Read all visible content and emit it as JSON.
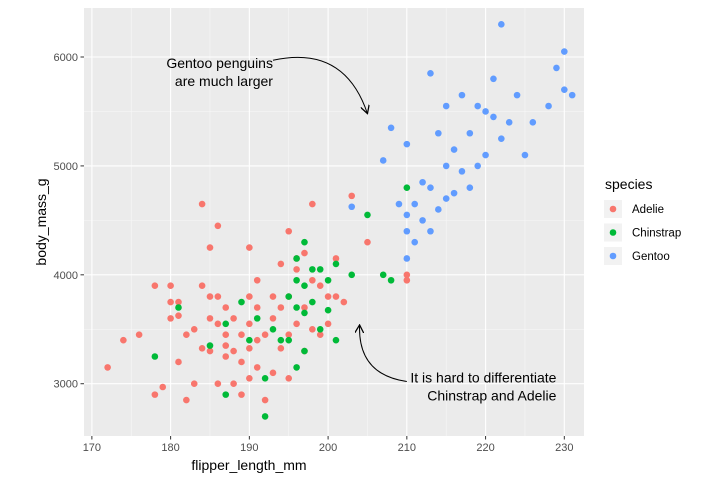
{
  "chart_data": {
    "type": "scatter",
    "xlabel": "flipper_length_mm",
    "ylabel": "body_mass_g",
    "xlim": [
      169,
      232.5
    ],
    "ylim": [
      2520,
      6450
    ],
    "x_ticks": [
      170,
      180,
      190,
      200,
      210,
      220,
      230
    ],
    "y_ticks": [
      3000,
      4000,
      5000,
      6000
    ],
    "grid": true,
    "legend": {
      "title": "species",
      "position": "right"
    },
    "annotations": [
      {
        "lines": [
          "Gentoo penguins",
          "are much larger"
        ],
        "x": 193,
        "y": 5900,
        "anchor": "end",
        "arrow": {
          "from": [
            193,
            5970
          ],
          "to": [
            205,
            5480
          ],
          "curvature": "clockwise"
        }
      },
      {
        "lines": [
          "It is hard to differentiate",
          "Chinstrap and Adelie"
        ],
        "x": 229,
        "y": 3010,
        "anchor": "end",
        "arrow": {
          "from": [
            210,
            3020
          ],
          "to": [
            204,
            3540
          ],
          "curvature": "clockwise"
        }
      }
    ],
    "series": [
      {
        "name": "Adelie",
        "color": "#F8766D",
        "points": [
          [
            172,
            3150
          ],
          [
            174,
            3400
          ],
          [
            176,
            3450
          ],
          [
            178,
            2900
          ],
          [
            178,
            3900
          ],
          [
            179,
            2970
          ],
          [
            180,
            3600
          ],
          [
            180,
            3750
          ],
          [
            180,
            3900
          ],
          [
            181,
            3200
          ],
          [
            181,
            3625
          ],
          [
            181,
            3750
          ],
          [
            182,
            2850
          ],
          [
            182,
            3450
          ],
          [
            183,
            3000
          ],
          [
            183,
            3500
          ],
          [
            184,
            3325
          ],
          [
            184,
            3900
          ],
          [
            184,
            4650
          ],
          [
            185,
            3300
          ],
          [
            185,
            3600
          ],
          [
            185,
            3800
          ],
          [
            185,
            4250
          ],
          [
            186,
            3000
          ],
          [
            186,
            3550
          ],
          [
            186,
            3800
          ],
          [
            186,
            4450
          ],
          [
            187,
            3250
          ],
          [
            187,
            3350
          ],
          [
            187,
            3450
          ],
          [
            187,
            3700
          ],
          [
            188,
            3000
          ],
          [
            188,
            3300
          ],
          [
            188,
            3600
          ],
          [
            189,
            2900
          ],
          [
            189,
            3200
          ],
          [
            189,
            3450
          ],
          [
            190,
            3050
          ],
          [
            190,
            3325
          ],
          [
            190,
            3550
          ],
          [
            190,
            3800
          ],
          [
            190,
            4250
          ],
          [
            191,
            3150
          ],
          [
            191,
            3400
          ],
          [
            191,
            3700
          ],
          [
            191,
            3950
          ],
          [
            192,
            2850
          ],
          [
            192,
            3450
          ],
          [
            193,
            3100
          ],
          [
            193,
            3600
          ],
          [
            193,
            3800
          ],
          [
            194,
            3325
          ],
          [
            194,
            3700
          ],
          [
            194,
            4100
          ],
          [
            195,
            3050
          ],
          [
            195,
            3450
          ],
          [
            195,
            3800
          ],
          [
            195,
            4400
          ],
          [
            196,
            3550
          ],
          [
            196,
            4050
          ],
          [
            196,
            4150
          ],
          [
            197,
            3300
          ],
          [
            197,
            3700
          ],
          [
            197,
            4200
          ],
          [
            198,
            3500
          ],
          [
            198,
            3950
          ],
          [
            198,
            4650
          ],
          [
            199,
            3450
          ],
          [
            199,
            3900
          ],
          [
            200,
            3550
          ],
          [
            200,
            3800
          ],
          [
            201,
            3800
          ],
          [
            201,
            4150
          ],
          [
            202,
            3750
          ],
          [
            203,
            4725
          ],
          [
            205,
            4300
          ],
          [
            210,
            3950
          ],
          [
            210,
            4000
          ]
        ]
      },
      {
        "name": "Chinstrap",
        "color": "#00BA38",
        "points": [
          [
            178,
            3250
          ],
          [
            181,
            3700
          ],
          [
            185,
            3350
          ],
          [
            187,
            3550
          ],
          [
            187,
            2900
          ],
          [
            189,
            3750
          ],
          [
            190,
            3400
          ],
          [
            191,
            3600
          ],
          [
            192,
            3050
          ],
          [
            192,
            2700
          ],
          [
            193,
            3500
          ],
          [
            194,
            3400
          ],
          [
            195,
            3400
          ],
          [
            195,
            3800
          ],
          [
            196,
            3150
          ],
          [
            196,
            3700
          ],
          [
            196,
            3950
          ],
          [
            196,
            4150
          ],
          [
            197,
            3300
          ],
          [
            197,
            3650
          ],
          [
            197,
            3900
          ],
          [
            197,
            4300
          ],
          [
            198,
            3750
          ],
          [
            198,
            4050
          ],
          [
            199,
            3500
          ],
          [
            199,
            4050
          ],
          [
            200,
            3675
          ],
          [
            200,
            3950
          ],
          [
            201,
            3400
          ],
          [
            201,
            4100
          ],
          [
            203,
            4000
          ],
          [
            205,
            4550
          ],
          [
            207,
            4000
          ],
          [
            208,
            3950
          ],
          [
            210,
            4800
          ]
        ]
      },
      {
        "name": "Gentoo",
        "color": "#619CFF",
        "points": [
          [
            203,
            4625
          ],
          [
            207,
            5050
          ],
          [
            208,
            5350
          ],
          [
            209,
            4650
          ],
          [
            210,
            4150
          ],
          [
            210,
            4400
          ],
          [
            210,
            4550
          ],
          [
            210,
            5200
          ],
          [
            211,
            4300
          ],
          [
            211,
            4650
          ],
          [
            212,
            4500
          ],
          [
            212,
            4850
          ],
          [
            213,
            4400
          ],
          [
            213,
            4800
          ],
          [
            213,
            5850
          ],
          [
            214,
            4600
          ],
          [
            214,
            5300
          ],
          [
            215,
            4700
          ],
          [
            215,
            5000
          ],
          [
            215,
            5550
          ],
          [
            216,
            4750
          ],
          [
            216,
            5150
          ],
          [
            217,
            4950
          ],
          [
            217,
            5650
          ],
          [
            218,
            4800
          ],
          [
            218,
            5300
          ],
          [
            219,
            5000
          ],
          [
            219,
            5550
          ],
          [
            220,
            5100
          ],
          [
            220,
            5500
          ],
          [
            221,
            5450
          ],
          [
            221,
            5800
          ],
          [
            222,
            6300
          ],
          [
            222,
            5250
          ],
          [
            223,
            5400
          ],
          [
            224,
            5650
          ],
          [
            225,
            5100
          ],
          [
            226,
            5400
          ],
          [
            228,
            5550
          ],
          [
            229,
            5900
          ],
          [
            230,
            5700
          ],
          [
            230,
            6050
          ],
          [
            231,
            5650
          ]
        ]
      }
    ]
  }
}
